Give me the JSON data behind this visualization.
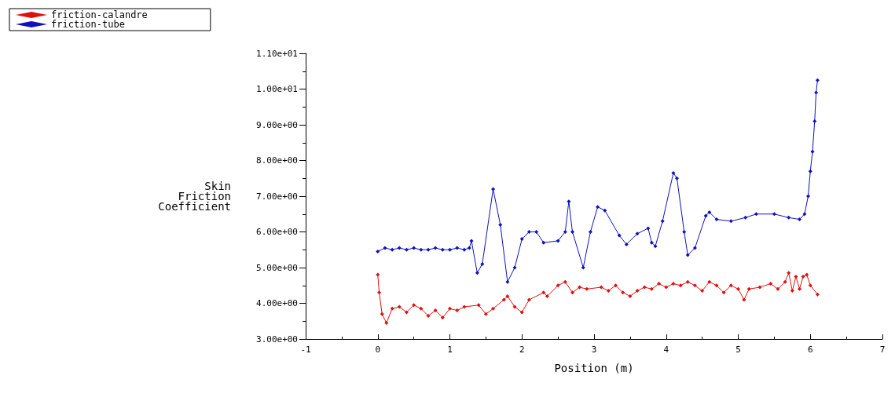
{
  "chart_data": {
    "type": "line",
    "xlabel": "Position (m)",
    "ylabel": "Skin Friction Coefficient",
    "legend": "top left",
    "marker": "diamond",
    "grid": false,
    "xlim": [
      -1,
      7
    ],
    "xticks": [
      -1,
      0,
      1,
      2,
      3,
      4,
      5,
      6,
      7
    ],
    "ylim": [
      3,
      11
    ],
    "yticks": [
      {
        "value": 3,
        "label": "3.00e+00"
      },
      {
        "value": 4,
        "label": "4.00e+00"
      },
      {
        "value": 5,
        "label": "5.00e+00"
      },
      {
        "value": 6,
        "label": "6.00e+00"
      },
      {
        "value": 7,
        "label": "7.00e+00"
      },
      {
        "value": 8,
        "label": "8.00e+00"
      },
      {
        "value": 9,
        "label": "9.00e+00"
      },
      {
        "value": 10,
        "label": "1.00e+01"
      },
      {
        "value": 11,
        "label": "1.10e+01"
      }
    ],
    "series": [
      {
        "name": "friction-calandre",
        "color": "#e01010",
        "x": [
          0,
          0.02,
          0.06,
          0.12,
          0.2,
          0.3,
          0.4,
          0.5,
          0.6,
          0.7,
          0.8,
          0.9,
          1.0,
          1.1,
          1.2,
          1.4,
          1.5,
          1.6,
          1.75,
          1.8,
          1.9,
          2.0,
          2.1,
          2.3,
          2.35,
          2.5,
          2.6,
          2.7,
          2.8,
          2.9,
          3.1,
          3.2,
          3.3,
          3.4,
          3.5,
          3.6,
          3.7,
          3.8,
          3.9,
          4.0,
          4.1,
          4.2,
          4.3,
          4.4,
          4.5,
          4.6,
          4.7,
          4.8,
          4.9,
          5.0,
          5.08,
          5.15,
          5.3,
          5.45,
          5.55,
          5.65,
          5.7,
          5.75,
          5.8,
          5.85,
          5.9,
          5.95,
          6.0,
          6.1
        ],
        "values": [
          4.8,
          4.3,
          3.7,
          3.45,
          3.85,
          3.9,
          3.75,
          3.95,
          3.85,
          3.65,
          3.8,
          3.6,
          3.85,
          3.8,
          3.9,
          3.95,
          3.7,
          3.85,
          4.1,
          4.2,
          3.9,
          3.75,
          4.1,
          4.3,
          4.2,
          4.5,
          4.6,
          4.3,
          4.45,
          4.4,
          4.45,
          4.35,
          4.5,
          4.3,
          4.2,
          4.35,
          4.45,
          4.4,
          4.55,
          4.45,
          4.55,
          4.5,
          4.6,
          4.5,
          4.35,
          4.6,
          4.5,
          4.3,
          4.5,
          4.4,
          4.1,
          4.4,
          4.45,
          4.55,
          4.4,
          4.6,
          4.85,
          4.35,
          4.75,
          4.4,
          4.75,
          4.8,
          4.5,
          4.25
        ]
      },
      {
        "name": "friction-tube",
        "color": "#1010c0",
        "x": [
          0,
          0.1,
          0.2,
          0.3,
          0.4,
          0.5,
          0.6,
          0.7,
          0.8,
          0.9,
          1.0,
          1.1,
          1.2,
          1.27,
          1.3,
          1.38,
          1.45,
          1.6,
          1.7,
          1.8,
          1.9,
          2.0,
          2.1,
          2.2,
          2.3,
          2.5,
          2.6,
          2.65,
          2.7,
          2.85,
          2.95,
          3.05,
          3.15,
          3.35,
          3.45,
          3.6,
          3.75,
          3.8,
          3.85,
          3.95,
          4.1,
          4.15,
          4.25,
          4.3,
          4.4,
          4.55,
          4.6,
          4.7,
          4.9,
          5.1,
          5.25,
          5.5,
          5.7,
          5.85,
          5.92,
          5.97,
          6.0,
          6.03,
          6.06,
          6.08,
          6.1
        ],
        "values": [
          5.45,
          5.55,
          5.5,
          5.55,
          5.5,
          5.55,
          5.5,
          5.5,
          5.55,
          5.5,
          5.5,
          5.55,
          5.5,
          5.55,
          5.75,
          4.85,
          5.1,
          7.2,
          6.2,
          4.6,
          5.0,
          5.8,
          6.0,
          6.0,
          5.7,
          5.75,
          6.0,
          6.85,
          6.0,
          5.0,
          6.0,
          6.7,
          6.6,
          5.9,
          5.65,
          5.95,
          6.1,
          5.7,
          5.6,
          6.3,
          7.65,
          7.5,
          6.0,
          5.35,
          5.55,
          6.45,
          6.55,
          6.35,
          6.3,
          6.4,
          6.5,
          6.5,
          6.4,
          6.35,
          6.5,
          7.0,
          7.7,
          8.25,
          9.1,
          9.9,
          10.25
        ]
      }
    ]
  }
}
